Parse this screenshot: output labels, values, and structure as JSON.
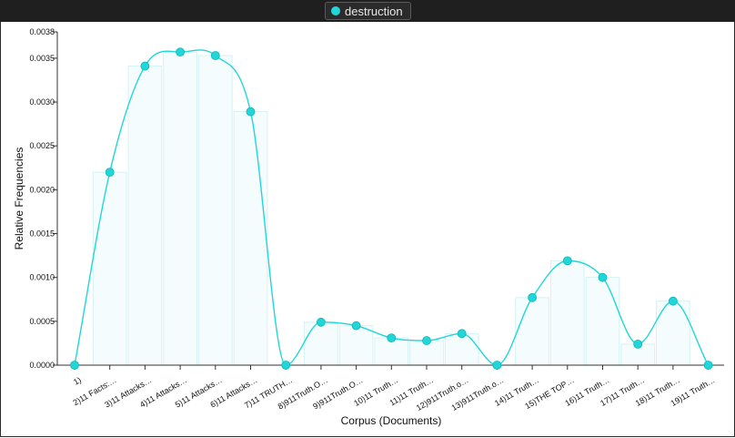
{
  "legend": {
    "series_name": "destruction"
  },
  "chart_data": {
    "type": "line",
    "xlabel": "Corpus (Documents)",
    "ylabel": "Relative Frequencies",
    "ylim": [
      0,
      0.0038
    ],
    "yticks": [
      "0.0000",
      "0.0005",
      "0.0010",
      "0.0015",
      "0.0020",
      "0.0025",
      "0.0030",
      "0.0035",
      "0.0038"
    ],
    "ytick_values": [
      0,
      0.0005,
      0.001,
      0.0015,
      0.002,
      0.0025,
      0.003,
      0.0035,
      0.0038
    ],
    "categories": [
      "1)",
      "2)11 Facts:…",
      "3)11 Attacks…",
      "4)11 Attacks…",
      "5)11 Attacks…",
      "6)11 Attacks…",
      "7)11 TRUTH…",
      "8)911Truth.O…",
      "9)911Truth.O…",
      "10)11 Truth…",
      "11)11 Truth…",
      "12)911Truth.o…",
      "13)911Truth.o…",
      "14)11 Truth…",
      "15)THE TOP…",
      "16)11 Truth…",
      "17)11 Truth…",
      "18)11 Truth…",
      "19)11 Truth…"
    ],
    "series": [
      {
        "name": "destruction",
        "color": "#21d6d9",
        "values": [
          0.0,
          0.0022,
          0.00341,
          0.00357,
          0.00353,
          0.00289,
          0.0,
          0.00049,
          0.00045,
          0.00031,
          0.00028,
          0.00036,
          0.0,
          0.00077,
          0.00119,
          0.001,
          0.00024,
          0.00073,
          0.0
        ]
      }
    ]
  }
}
